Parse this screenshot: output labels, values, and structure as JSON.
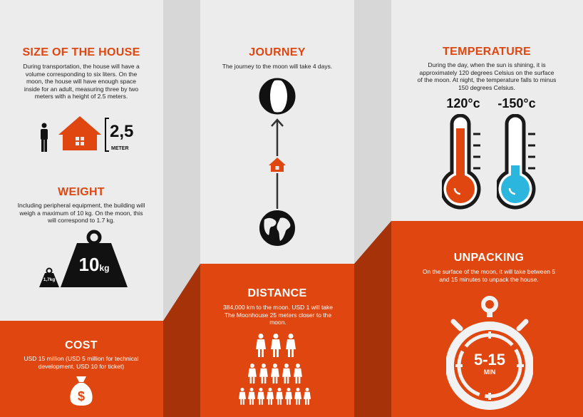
{
  "colors": {
    "accent": "#e0460f",
    "dark": "#1a1a1a",
    "fold": "#a63209",
    "gap": "#d7d7d7",
    "cold": "#2bb6de"
  },
  "size_house": {
    "title": "SIZE OF THE HOUSE",
    "body": "During transportation, the house will have a volume corresponding to six liters. On the moon, the house will have enough space inside for an adult, measuring three by two meters with a height of 2.5 meters.",
    "value": "2,5",
    "unit": "METER"
  },
  "weight": {
    "title": "WEIGHT",
    "body": "Including peripheral equipment, the building will weigh a maximum of 10 kg. On the moon, this will correspond to 1.7 kg.",
    "big_value": "10",
    "big_unit": "kg",
    "small_label": "1,7kg"
  },
  "cost": {
    "title": "COST",
    "body": "USD 15 million (USD 5 million for technical development, USD 10 for ticket)"
  },
  "journey": {
    "title": "JOURNEY",
    "body": "The journey to the moon will take 4 days."
  },
  "distance": {
    "title": "DISTANCE",
    "body": "384,000 km to the moon. USD 1 will take The Moonhouse 25 meters closer to the moon."
  },
  "temperature": {
    "title": "TEMPERATURE",
    "body": "During the day, when the sun is shining, it is approximately 120 degrees Celsius on the surface of the moon. At night, the temperature falls to minus 150 degrees Celsius.",
    "hot": "120°c",
    "cold": "-150°c"
  },
  "unpacking": {
    "title": "UNPACKING",
    "body": "On the surface of the moon, it will take between 5 and 15 minutes to unpack the house.",
    "range": "5-15",
    "unit": "MIN"
  }
}
